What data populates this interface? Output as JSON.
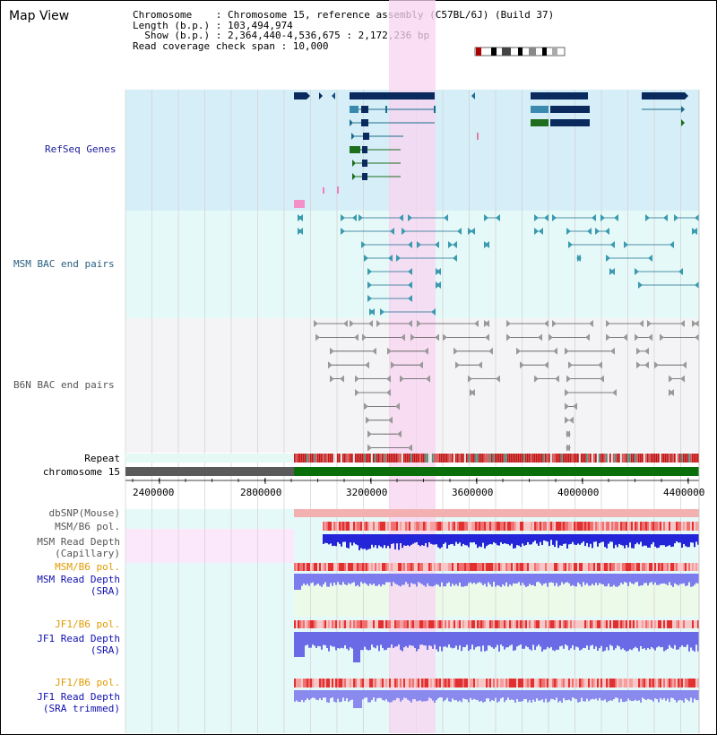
{
  "header": {
    "title": "Map View",
    "info_lines": [
      "Chromosome    : Chromosome 15, reference assembly (C57BL/6J) (Build 37)",
      "Length (b.p.) : 103,494,974",
      "  Show (b.p.) : 2,364,440-4,536,675 : 2,172,236 bp",
      "Read coverage check span : 10,000"
    ]
  },
  "tracks": {
    "refseq": "RefSeq Genes",
    "msm_bac": "MSM BAC end pairs",
    "b6n_bac": "B6N BAC end pairs",
    "repeat": "Repeat",
    "chromosome": "chromosome 15",
    "dbsnp": "dbSNP(Mouse)",
    "msm_b6_pol_1": "MSM/B6 pol.",
    "msm_read_depth_cap_1": "MSM Read Depth",
    "msm_read_depth_cap_2": "(Capillary)",
    "msm_b6_pol_2": "MSM/B6 pol.",
    "msm_read_depth_sra_1": "MSM Read Depth",
    "msm_read_depth_sra_2": "(SRA)",
    "jf1_b6_pol_1": "JF1/B6 pol.",
    "jf1_read_depth_sra_1": "JF1 Read Depth",
    "jf1_read_depth_sra_2": "(SRA)",
    "jf1_b6_pol_2": "JF1/B6 pol.",
    "jf1_read_depth_trim_1": "JF1 Read Depth",
    "jf1_read_depth_trim_2": "(SRA trimmed)"
  },
  "axis": {
    "ticks": [
      "2400000",
      "2800000",
      "3200000",
      "3600000",
      "4000000",
      "4400000"
    ]
  },
  "colors": {
    "refseq_bg": "#d6eef8",
    "msm_bg": "#e6f9f9",
    "b6n_bg": "#f3f3f3",
    "highlight": "#f8d4f0",
    "gene_dark": "#0a2a5e",
    "gene_teal": "#1a6c8c",
    "gene_green": "#1e6e1e",
    "chrom_gray": "#5a5a5a",
    "chrom_green": "#0a6e0a",
    "depth_blue": "#2a2ad8",
    "depth_light_blue": "#8080ee",
    "pol_red": "#e03030"
  }
}
